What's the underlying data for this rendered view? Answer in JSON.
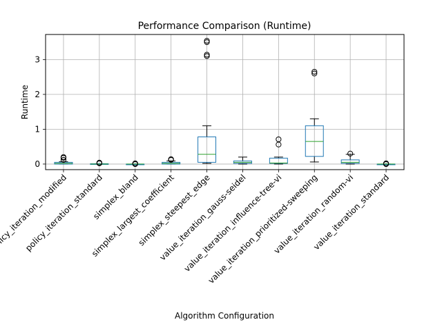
{
  "chart_data": {
    "type": "boxplot",
    "title": "Performance Comparison (Runtime)",
    "xlabel": "Algorithm Configuration",
    "ylabel": "Runtime",
    "ylim": [
      -0.16,
      3.72
    ],
    "yticks": [
      0,
      1,
      2,
      3
    ],
    "grid": true,
    "colors": {
      "box": "#1f77b4",
      "median": "#2ca02c",
      "whisker": "#000000",
      "grid": "#b0b0b0"
    },
    "categories": [
      "policy_iteration_modified",
      "policy_iteration_standard",
      "simplex_bland",
      "simplex_largest_coefficient",
      "simplex_steepest_edge",
      "value_iteration_gauss-seidel",
      "value_iteration_influence-tree-vi",
      "value_iteration_prioritized-sweeping",
      "value_iteration_random-vi",
      "value_iteration_standard"
    ],
    "boxes": [
      {
        "whisker_low": 0.0,
        "q1": 0.0,
        "median": 0.02,
        "q3": 0.05,
        "whisker_high": 0.07,
        "outliers": [
          0.12,
          0.18,
          0.2
        ]
      },
      {
        "whisker_low": 0.0,
        "q1": 0.0,
        "median": 0.0,
        "q3": 0.01,
        "whisker_high": 0.01,
        "outliers": [
          0.02,
          0.04
        ]
      },
      {
        "whisker_low": 0.0,
        "q1": 0.0,
        "median": 0.0,
        "q3": 0.0,
        "whisker_high": 0.0,
        "outliers": [
          0.0,
          0.02
        ]
      },
      {
        "whisker_low": 0.0,
        "q1": 0.0,
        "median": 0.02,
        "q3": 0.05,
        "whisker_high": 0.09,
        "outliers": [
          0.12,
          0.14
        ]
      },
      {
        "whisker_low": 0.02,
        "q1": 0.05,
        "median": 0.28,
        "q3": 0.78,
        "whisker_high": 1.1,
        "outliers": [
          3.1,
          3.14,
          3.5,
          3.54
        ]
      },
      {
        "whisker_low": 0.0,
        "q1": 0.02,
        "median": 0.05,
        "q3": 0.09,
        "whisker_high": 0.2,
        "outliers": []
      },
      {
        "whisker_low": 0.0,
        "q1": 0.02,
        "median": 0.03,
        "q3": 0.17,
        "whisker_high": 0.2,
        "outliers": [
          0.56,
          0.71
        ]
      },
      {
        "whisker_low": 0.06,
        "q1": 0.22,
        "median": 0.65,
        "q3": 1.1,
        "whisker_high": 1.3,
        "outliers": [
          2.6,
          2.65
        ]
      },
      {
        "whisker_low": 0.0,
        "q1": 0.02,
        "median": 0.05,
        "q3": 0.12,
        "whisker_high": 0.28,
        "outliers": [
          0.3
        ]
      },
      {
        "whisker_low": 0.0,
        "q1": 0.0,
        "median": 0.0,
        "q3": 0.0,
        "whisker_high": 0.0,
        "outliers": [
          0.0,
          0.02
        ]
      }
    ]
  }
}
